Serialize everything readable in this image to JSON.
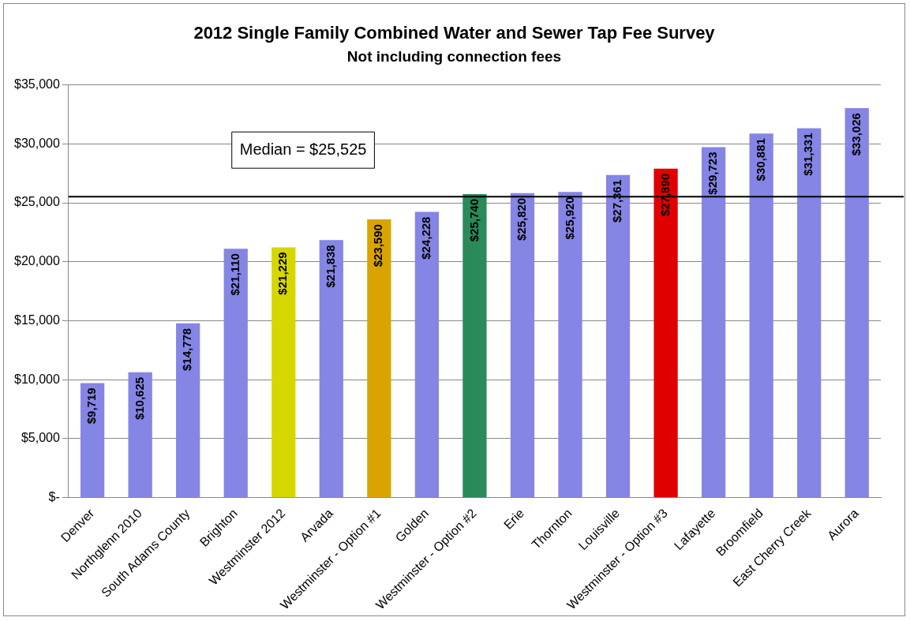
{
  "chart_data": {
    "type": "bar",
    "title": "2012 Single Family Combined Water and Sewer Tap Fee Survey",
    "subtitle": "Not including connection fees",
    "categories": [
      "Denver",
      "Northglenn 2010",
      "South Adams County",
      "Brighton",
      "Westminster 2012",
      "Arvada",
      "Westminster - Option #1",
      "Golden",
      "Westminster - Option #2",
      "Erie",
      "Thornton",
      "Louisville",
      "Westminster - Option #3",
      "Lafayette",
      "Broomfield",
      "East Cherry Creek",
      "Aurora"
    ],
    "values": [
      9719,
      10625,
      14778,
      21110,
      21229,
      21838,
      23590,
      24228,
      25740,
      25820,
      25920,
      27361,
      27890,
      29723,
      30881,
      31331,
      33026
    ],
    "value_labels": [
      "$9,719",
      "$10,625",
      "$14,778",
      "$21,110",
      "$21,229",
      "$21,838",
      "$23,590",
      "$24,228",
      "$25,740",
      "$25,820",
      "$25,920",
      "$27,361",
      "$27,890",
      "$29,723",
      "$30,881",
      "$31,331",
      "$33,026"
    ],
    "colors": [
      "#8585e6",
      "#8585e6",
      "#8585e6",
      "#8585e6",
      "#d6d600",
      "#8585e6",
      "#d9a400",
      "#8585e6",
      "#2a8a5a",
      "#8585e6",
      "#8585e6",
      "#8585e6",
      "#e00000",
      "#8585e6",
      "#8585e6",
      "#8585e6",
      "#8585e6"
    ],
    "ylim": [
      0,
      35000
    ],
    "yticks": [
      {
        "value": 0,
        "label": "$-"
      },
      {
        "value": 5000,
        "label": "$5,000"
      },
      {
        "value": 10000,
        "label": "$10,000"
      },
      {
        "value": 15000,
        "label": "$15,000"
      },
      {
        "value": 20000,
        "label": "$20,000"
      },
      {
        "value": 25000,
        "label": "$25,000"
      },
      {
        "value": 30000,
        "label": "$30,000"
      },
      {
        "value": 35000,
        "label": "$35,000"
      }
    ],
    "ref_lines": [
      {
        "axis": "y",
        "value": 25525,
        "label": "Median = $25,525",
        "color": "#000000"
      }
    ],
    "grid": "y",
    "legend": false
  }
}
